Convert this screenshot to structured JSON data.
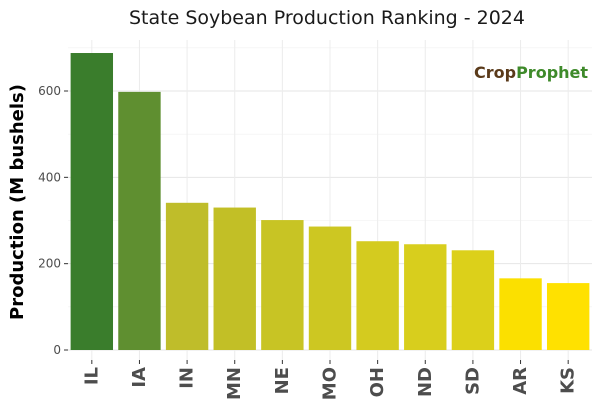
{
  "chart_data": {
    "type": "bar",
    "title": "State Soybean Production Ranking - 2024",
    "xlabel": "",
    "ylabel": "Production (M bushels)",
    "categories": [
      "IL",
      "IA",
      "IN",
      "MN",
      "NE",
      "MO",
      "OH",
      "ND",
      "SD",
      "AR",
      "KS"
    ],
    "values": [
      688,
      598,
      341,
      330,
      301,
      286,
      252,
      245,
      231,
      166,
      155
    ],
    "ylim": [
      0,
      720
    ],
    "yticks": [
      0,
      200,
      400,
      600
    ],
    "grid": true,
    "legend": "none",
    "colors": [
      "#3a7d2c",
      "#5f8f30",
      "#bfbd2a",
      "#c2bf26",
      "#c8c424",
      "#cdc722",
      "#d4cb1f",
      "#d8ce1d",
      "#dcd01a",
      "#fbe000",
      "#ffe100"
    ]
  },
  "logo": {
    "text_crop": "Crop",
    "text_prophet": "Prophet"
  }
}
